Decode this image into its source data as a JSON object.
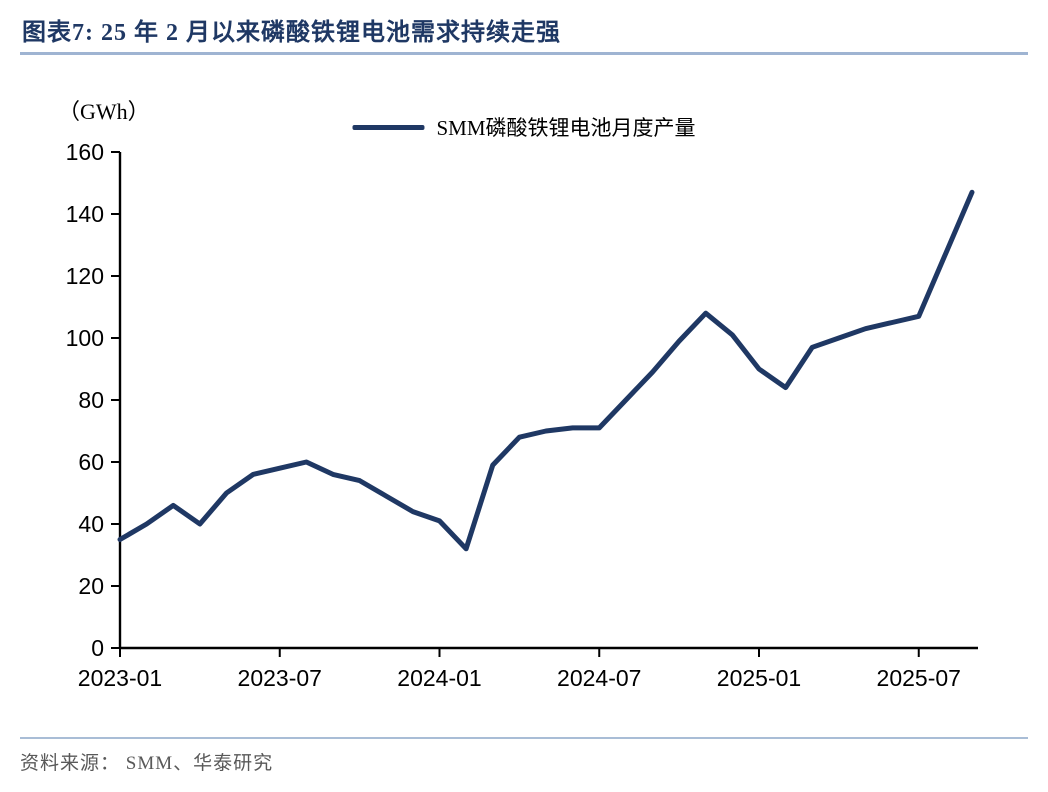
{
  "header": {
    "title": "图表7:  25 年 2 月以来磷酸铁锂电池需求持续走强"
  },
  "footer": {
    "source": "资料来源： SMM、华泰研究"
  },
  "chart_data": {
    "type": "line",
    "title": "SMM磷酸铁锂电池月度产量",
    "unit_label": "（GWh）",
    "legend_label": "SMM磷酸铁锂电池月度产量",
    "legend_position": "top",
    "grid": false,
    "line_color": "#1F3864",
    "ylim": [
      0,
      160
    ],
    "y_ticks": [
      0,
      20,
      40,
      60,
      80,
      100,
      120,
      140,
      160
    ],
    "x_tick_labels": [
      "2023-01",
      "2023-07",
      "2024-01",
      "2024-07",
      "2025-01",
      "2025-07"
    ],
    "x": [
      "2023-01",
      "2023-02",
      "2023-03",
      "2023-04",
      "2023-05",
      "2023-06",
      "2023-07",
      "2023-08",
      "2023-09",
      "2023-10",
      "2023-11",
      "2023-12",
      "2024-01",
      "2024-02",
      "2024-03",
      "2024-04",
      "2024-05",
      "2024-06",
      "2024-07",
      "2024-08",
      "2024-09",
      "2024-10",
      "2024-11",
      "2024-12",
      "2025-01",
      "2025-02",
      "2025-03",
      "2025-04",
      "2025-05",
      "2025-06",
      "2025-07",
      "2025-08",
      "2025-09"
    ],
    "series": [
      {
        "name": "SMM磷酸铁锂电池月度产量",
        "values": [
          35,
          40,
          46,
          40,
          50,
          56,
          58,
          60,
          56,
          54,
          49,
          44,
          41,
          32,
          59,
          68,
          70,
          71,
          71,
          80,
          89,
          99,
          108,
          101,
          90,
          84,
          97,
          100,
          103,
          105,
          107,
          127,
          147
        ]
      }
    ]
  }
}
